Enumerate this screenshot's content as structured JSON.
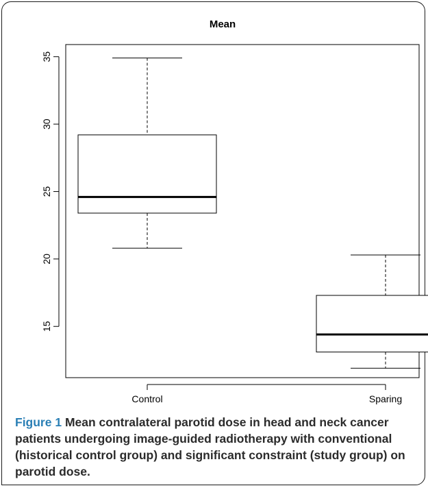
{
  "chart_data": {
    "type": "boxplot",
    "title": "Mean",
    "xlabel": "",
    "ylabel": "",
    "ylim": [
      11.2,
      35.9
    ],
    "yticks": [
      15,
      20,
      25,
      30,
      35
    ],
    "categories": [
      "Control",
      "Sparing"
    ],
    "boxes": [
      {
        "category": "Control",
        "whisker_low": 20.8,
        "q1": 23.4,
        "median": 24.6,
        "q3": 29.2,
        "whisker_high": 34.9
      },
      {
        "category": "Sparing",
        "whisker_low": 11.9,
        "q1": 13.1,
        "median": 14.4,
        "q3": 17.3,
        "whisker_high": 20.3
      }
    ],
    "grid": false,
    "legend": "none"
  },
  "caption": {
    "label": "Figure 1",
    "text": " Mean contralateral parotid dose in head and neck cancer patients undergoing image-guided radiotherapy with conventional (historical control group) and significant constraint (study group) on parotid dose."
  }
}
